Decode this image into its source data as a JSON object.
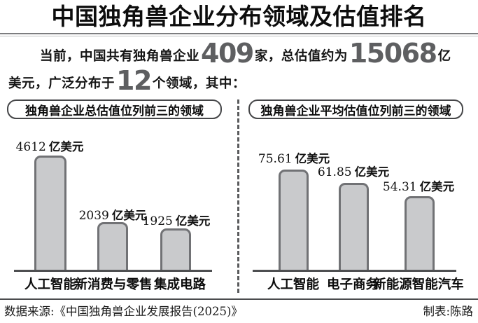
{
  "title": "中国独角兽企业分布领域及估值排名",
  "intro": {
    "seg1": "当前，中国共有独角兽企业",
    "num_companies": "409",
    "seg2": "家，总估值约为",
    "num_total_valuation": "15068",
    "seg3": "亿",
    "seg4": "美元，广泛分布于",
    "num_fields": "12",
    "seg5": "个领域，其中："
  },
  "chart_data": [
    {
      "type": "bar",
      "title": "独角兽企业总估值位列前三的领域",
      "categories": [
        "人工智能",
        "新消费与零售",
        "集成电路"
      ],
      "values": [
        4612,
        2039,
        1925
      ],
      "values_text": [
        "4612",
        "2039",
        "1925"
      ],
      "unit": "亿美元",
      "xlabel": "",
      "ylabel": "",
      "ylim": [
        0,
        5000
      ],
      "grid": false,
      "legend": "none"
    },
    {
      "type": "bar",
      "title": "独角兽企业平均估值位列前三的领域",
      "categories": [
        "人工智能",
        "电子商务",
        "新能源智能汽车"
      ],
      "values": [
        75.61,
        61.85,
        54.31
      ],
      "values_text": [
        "75.61",
        "61.85",
        "54.31"
      ],
      "unit": "亿美元",
      "xlabel": "",
      "ylabel": "",
      "ylim": [
        0,
        80
      ],
      "grid": false,
      "legend": "none"
    }
  ],
  "footer": {
    "source": "数据来源:《中国独角兽企业发展报告(2025)》",
    "credit": "制表:陈路"
  },
  "colors": {
    "bar_fill": "#c9cacc",
    "bar_border": "#717275",
    "axis": "#4e4f51",
    "big_number": "#5e5f61",
    "text": "#0d0d0d"
  }
}
